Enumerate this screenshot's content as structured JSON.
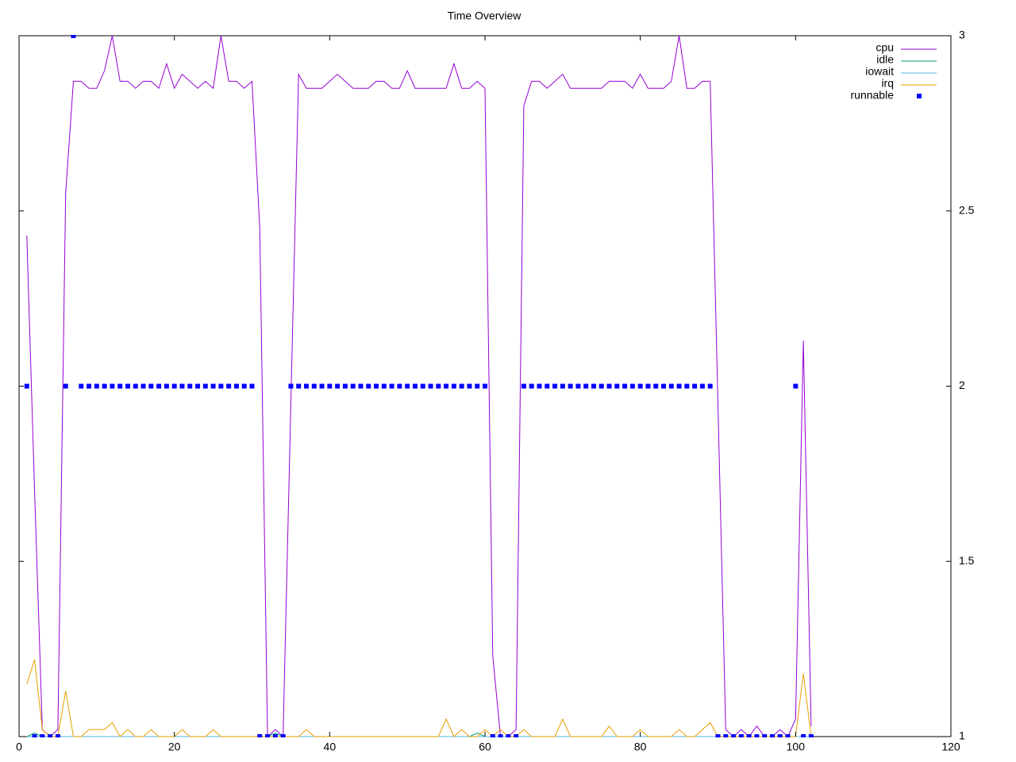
{
  "chart_data": {
    "type": "line",
    "title": "Time Overview",
    "x": [
      1,
      2,
      3,
      4,
      5,
      6,
      7,
      8,
      9,
      10,
      11,
      12,
      13,
      14,
      15,
      16,
      17,
      18,
      19,
      20,
      21,
      22,
      23,
      24,
      25,
      26,
      27,
      28,
      29,
      30,
      31,
      32,
      33,
      34,
      35,
      36,
      37,
      38,
      39,
      40,
      41,
      42,
      43,
      44,
      45,
      46,
      47,
      48,
      49,
      50,
      51,
      52,
      53,
      54,
      55,
      56,
      57,
      58,
      59,
      60,
      61,
      62,
      63,
      64,
      65,
      66,
      67,
      68,
      69,
      70,
      71,
      72,
      73,
      74,
      75,
      76,
      77,
      78,
      79,
      80,
      81,
      82,
      83,
      84,
      85,
      86,
      87,
      88,
      89,
      90,
      91,
      92,
      93,
      94,
      95,
      96,
      97,
      98,
      99,
      100,
      101,
      102
    ],
    "series": [
      {
        "name": "cpu",
        "color": "#9400d3",
        "style": "line",
        "values": [
          2.43,
          1.7,
          1.02,
          1.0,
          1.02,
          2.55,
          2.87,
          2.87,
          2.85,
          2.85,
          2.9,
          3.0,
          2.87,
          2.87,
          2.85,
          2.87,
          2.87,
          2.85,
          2.92,
          2.85,
          2.89,
          2.87,
          2.85,
          2.87,
          2.85,
          3.0,
          2.87,
          2.87,
          2.85,
          2.87,
          2.45,
          1.0,
          1.02,
          1.0,
          1.95,
          2.89,
          2.85,
          2.85,
          2.85,
          2.87,
          2.89,
          2.87,
          2.85,
          2.85,
          2.85,
          2.87,
          2.87,
          2.85,
          2.85,
          2.9,
          2.85,
          2.85,
          2.85,
          2.85,
          2.85,
          2.92,
          2.85,
          2.85,
          2.87,
          2.85,
          1.23,
          1.0,
          1.0,
          1.02,
          2.8,
          2.87,
          2.87,
          2.85,
          2.87,
          2.89,
          2.85,
          2.85,
          2.85,
          2.85,
          2.85,
          2.87,
          2.87,
          2.87,
          2.85,
          2.89,
          2.85,
          2.85,
          2.85,
          2.87,
          3.0,
          2.85,
          2.85,
          2.87,
          2.87,
          1.95,
          1.02,
          1.0,
          1.02,
          1.0,
          1.03,
          1.0,
          1.0,
          1.02,
          1.0,
          1.05,
          2.13,
          1.03
        ]
      },
      {
        "name": "idle",
        "color": "#009e73",
        "style": "line",
        "values": [
          1.0,
          1.01,
          1.0,
          1.0,
          1.0,
          1.0,
          1.0,
          1.0,
          1.0,
          1.0,
          1.0,
          1.0,
          1.0,
          1.0,
          1.0,
          1.0,
          1.0,
          1.0,
          1.0,
          1.0,
          1.0,
          1.0,
          1.0,
          1.0,
          1.0,
          1.0,
          1.0,
          1.0,
          1.0,
          1.0,
          1.0,
          1.0,
          1.01,
          1.0,
          1.0,
          1.0,
          1.0,
          1.0,
          1.0,
          1.0,
          1.0,
          1.0,
          1.0,
          1.0,
          1.0,
          1.0,
          1.0,
          1.0,
          1.0,
          1.0,
          1.0,
          1.0,
          1.0,
          1.0,
          1.0,
          1.0,
          1.0,
          1.0,
          1.01,
          1.0,
          1.0,
          1.0,
          1.0,
          1.0,
          1.0,
          1.0,
          1.0,
          1.0,
          1.0,
          1.0,
          1.0,
          1.0,
          1.0,
          1.0,
          1.0,
          1.0,
          1.0,
          1.0,
          1.0,
          1.0,
          1.0,
          1.0,
          1.0,
          1.0,
          1.0,
          1.0,
          1.0,
          1.0,
          1.0,
          1.0,
          1.0,
          1.0,
          1.0,
          1.0,
          1.0,
          1.0,
          1.0,
          1.0,
          1.0,
          1.0,
          1.0,
          1.0
        ]
      },
      {
        "name": "iowait",
        "color": "#56b4e9",
        "style": "line",
        "values": [
          1.0,
          1.0,
          1.0,
          1.0,
          1.0,
          1.0,
          1.0,
          1.0,
          1.0,
          1.0,
          1.0,
          1.0,
          1.0,
          1.0,
          1.0,
          1.0,
          1.0,
          1.0,
          1.0,
          1.0,
          1.0,
          1.0,
          1.0,
          1.0,
          1.0,
          1.0,
          1.0,
          1.0,
          1.0,
          1.0,
          1.0,
          1.0,
          1.0,
          1.0,
          1.0,
          1.0,
          1.0,
          1.0,
          1.0,
          1.0,
          1.0,
          1.0,
          1.0,
          1.0,
          1.0,
          1.0,
          1.0,
          1.0,
          1.0,
          1.0,
          1.0,
          1.0,
          1.0,
          1.0,
          1.0,
          1.0,
          1.0,
          1.0,
          1.0,
          1.0,
          1.0,
          1.0,
          1.0,
          1.0,
          1.0,
          1.0,
          1.0,
          1.0,
          1.0,
          1.0,
          1.0,
          1.0,
          1.0,
          1.0,
          1.0,
          1.0,
          1.0,
          1.0,
          1.0,
          1.0,
          1.0,
          1.0,
          1.0,
          1.0,
          1.0,
          1.0,
          1.0,
          1.0,
          1.0,
          1.0,
          1.0,
          1.0,
          1.0,
          1.0,
          1.0,
          1.0,
          1.0,
          1.0,
          1.0,
          1.0,
          1.0,
          1.0
        ]
      },
      {
        "name": "irq",
        "color": "#e69f00",
        "style": "line",
        "values": [
          1.15,
          1.22,
          1.02,
          1.0,
          1.0,
          1.13,
          1.0,
          1.0,
          1.02,
          1.02,
          1.02,
          1.04,
          1.0,
          1.02,
          1.0,
          1.0,
          1.02,
          1.0,
          1.0,
          1.0,
          1.02,
          1.0,
          1.0,
          1.0,
          1.02,
          1.0,
          1.0,
          1.0,
          1.0,
          1.0,
          1.0,
          1.0,
          1.0,
          1.0,
          1.0,
          1.0,
          1.02,
          1.0,
          1.0,
          1.0,
          1.0,
          1.0,
          1.0,
          1.0,
          1.0,
          1.0,
          1.0,
          1.0,
          1.0,
          1.0,
          1.0,
          1.0,
          1.0,
          1.0,
          1.05,
          1.0,
          1.02,
          1.0,
          1.0,
          1.02,
          1.0,
          1.02,
          1.0,
          1.0,
          1.02,
          1.0,
          1.0,
          1.0,
          1.0,
          1.05,
          1.0,
          1.0,
          1.0,
          1.0,
          1.0,
          1.03,
          1.0,
          1.0,
          1.0,
          1.02,
          1.0,
          1.0,
          1.0,
          1.0,
          1.02,
          1.0,
          1.0,
          1.02,
          1.04,
          1.0,
          1.0,
          1.0,
          1.0,
          1.0,
          1.0,
          1.0,
          1.0,
          1.0,
          1.0,
          1.0,
          1.18,
          1.0
        ]
      },
      {
        "name": "runnable",
        "color": "#0000ff",
        "style": "points",
        "values": [
          2,
          1,
          1,
          1,
          1,
          2,
          3,
          2,
          2,
          2,
          2,
          2,
          2,
          2,
          2,
          2,
          2,
          2,
          2,
          2,
          2,
          2,
          2,
          2,
          2,
          2,
          2,
          2,
          2,
          2,
          1,
          1,
          1,
          1,
          2,
          2,
          2,
          2,
          2,
          2,
          2,
          2,
          2,
          2,
          2,
          2,
          2,
          2,
          2,
          2,
          2,
          2,
          2,
          2,
          2,
          2,
          2,
          2,
          2,
          2,
          1,
          1,
          1,
          1,
          2,
          2,
          2,
          2,
          2,
          2,
          2,
          2,
          2,
          2,
          2,
          2,
          2,
          2,
          2,
          2,
          2,
          2,
          2,
          2,
          2,
          2,
          2,
          2,
          2,
          1,
          1,
          1,
          1,
          1,
          1,
          1,
          1,
          1,
          1,
          2,
          1,
          1
        ]
      }
    ],
    "xlim": [
      0,
      120
    ],
    "xticks": [
      0,
      20,
      40,
      60,
      80,
      100,
      120
    ],
    "ylim": [
      1,
      3
    ],
    "yticks": [
      1,
      1.5,
      2,
      2.5,
      3
    ],
    "legend": "top-right"
  }
}
